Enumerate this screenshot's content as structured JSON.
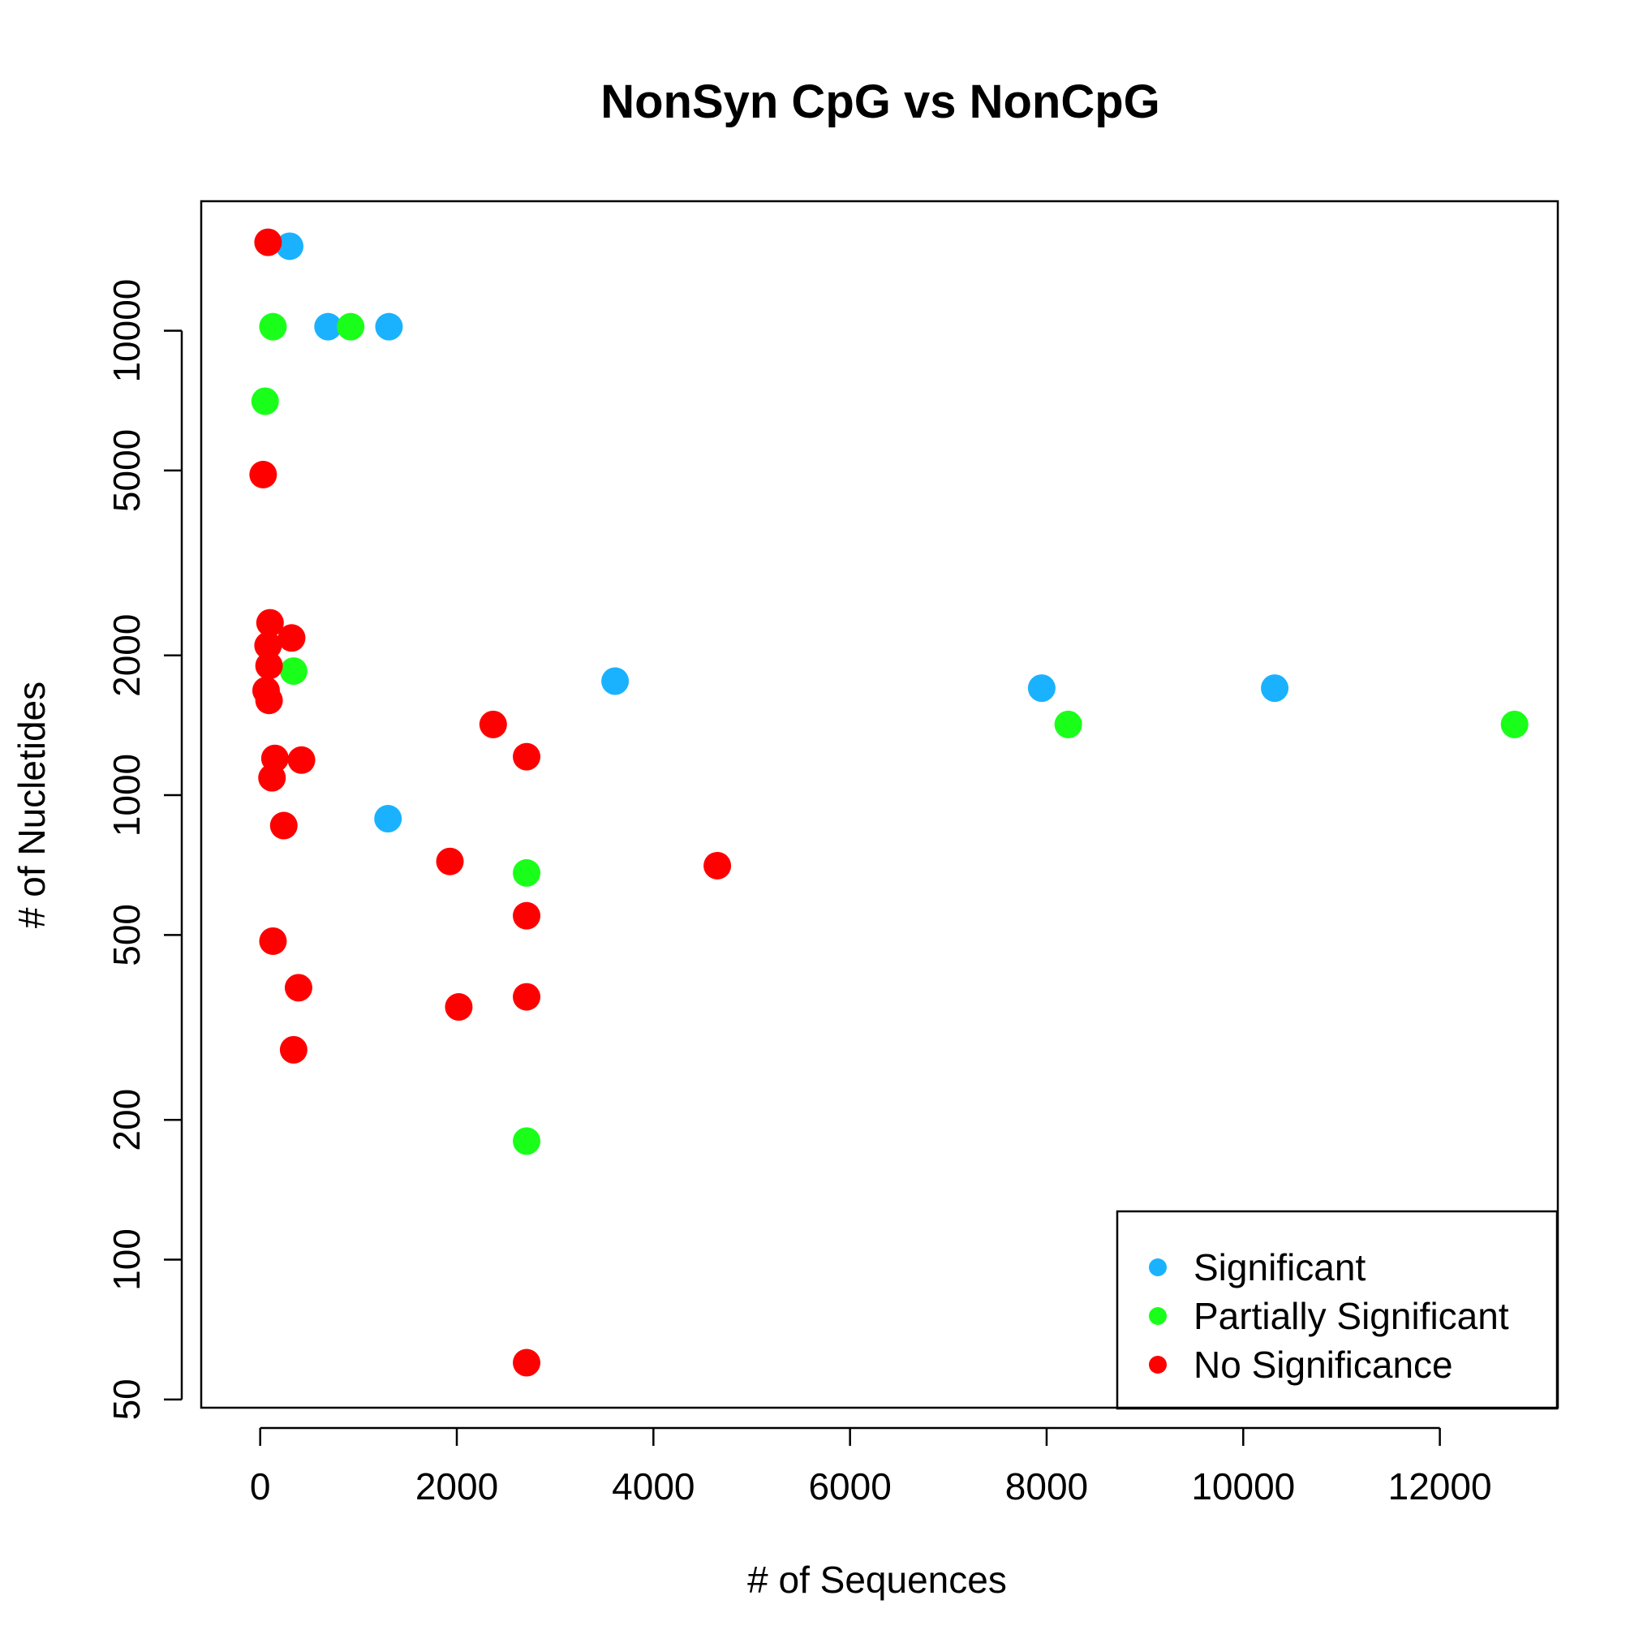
{
  "chart_data": {
    "type": "scatter",
    "title": "NonSyn CpG vs NonCpG",
    "xlabel": "# of Sequences",
    "ylabel": "# of Nucletides",
    "xlim": [
      -600,
      13200
    ],
    "ylim": [
      48,
      19000
    ],
    "y_scale": "log",
    "x_ticks": [
      0,
      2000,
      4000,
      6000,
      8000,
      10000,
      12000
    ],
    "x_tick_labels": [
      "0",
      "2000",
      "4000",
      "6000",
      "8000",
      "10000",
      "12000"
    ],
    "y_ticks": [
      50,
      100,
      200,
      500,
      1000,
      2000,
      5000,
      10000
    ],
    "y_tick_labels": [
      "50",
      "100",
      "200",
      "500",
      "1000",
      "2000",
      "5000",
      "10000"
    ],
    "grid": false,
    "legend_position": "bottom-right",
    "series": [
      {
        "name": "Significant",
        "color": "#1ab2ff",
        "points": [
          {
            "x": 300,
            "y": 15200
          },
          {
            "x": 690,
            "y": 10200
          },
          {
            "x": 1310,
            "y": 10200
          },
          {
            "x": 3610,
            "y": 1760
          },
          {
            "x": 1300,
            "y": 890
          },
          {
            "x": 7950,
            "y": 1700
          },
          {
            "x": 10320,
            "y": 1700
          }
        ]
      },
      {
        "name": "Partially Significant",
        "color": "#1aff1a",
        "points": [
          {
            "x": 130,
            "y": 10200
          },
          {
            "x": 920,
            "y": 10200
          },
          {
            "x": 50,
            "y": 7050
          },
          {
            "x": 340,
            "y": 1850
          },
          {
            "x": 8220,
            "y": 1420
          },
          {
            "x": 12760,
            "y": 1420
          },
          {
            "x": 2710,
            "y": 680
          },
          {
            "x": 2710,
            "y": 180
          }
        ]
      },
      {
        "name": "No Significance",
        "color": "#ff0000",
        "points": [
          {
            "x": 80,
            "y": 15500
          },
          {
            "x": 30,
            "y": 4900
          },
          {
            "x": 100,
            "y": 2350
          },
          {
            "x": 320,
            "y": 2180
          },
          {
            "x": 80,
            "y": 2100
          },
          {
            "x": 90,
            "y": 1900
          },
          {
            "x": 60,
            "y": 1680
          },
          {
            "x": 90,
            "y": 1600
          },
          {
            "x": 150,
            "y": 1200
          },
          {
            "x": 420,
            "y": 1190
          },
          {
            "x": 120,
            "y": 1090
          },
          {
            "x": 240,
            "y": 860
          },
          {
            "x": 2370,
            "y": 1420
          },
          {
            "x": 2710,
            "y": 1210
          },
          {
            "x": 1930,
            "y": 720
          },
          {
            "x": 4650,
            "y": 705
          },
          {
            "x": 2710,
            "y": 550
          },
          {
            "x": 130,
            "y": 485
          },
          {
            "x": 390,
            "y": 385
          },
          {
            "x": 2020,
            "y": 350
          },
          {
            "x": 2710,
            "y": 368
          },
          {
            "x": 340,
            "y": 283
          },
          {
            "x": 2710,
            "y": 60
          }
        ]
      }
    ]
  }
}
